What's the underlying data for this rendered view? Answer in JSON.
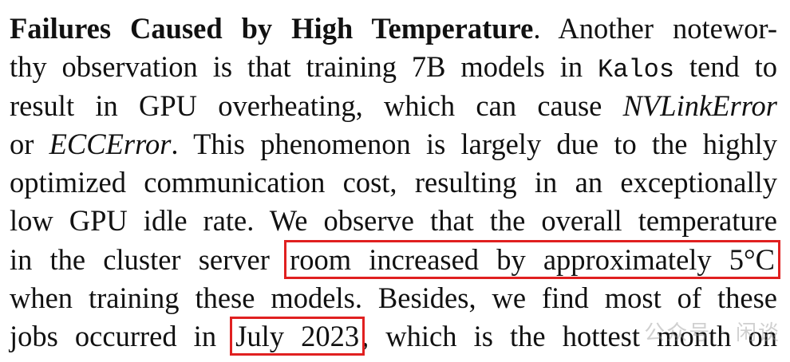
{
  "paragraph": {
    "l1": {
      "heading": "Failures Caused by High Temperature",
      "text": ". Another notewor-"
    },
    "l2": {
      "a": "thy observation is that training 7B models in ",
      "code": "Kalos",
      "b": " tend to"
    },
    "l3": {
      "a": "result in GPU overheating, which can cause ",
      "em": "NVLinkError"
    },
    "l4": {
      "a": "or ",
      "em": "ECCError",
      "b": ". This phenomenon is largely due to the highly"
    },
    "l5": "optimized communication cost, resulting in an exceptionally",
    "l6": "low GPU idle rate. We observe that the overall temperature",
    "l7": {
      "a": "in the cluster server ",
      "highlight": "room increased by approximately 5°C"
    },
    "l8": "when training these models. Besides, we find most of these",
    "l9": {
      "a": "jobs occurred in ",
      "highlight": "July 2023",
      "b": ", which is the hottest month on"
    }
  },
  "watermark": "公众号 · 闲谈",
  "colors": {
    "highlight_box": "#e02020",
    "text": "#111111"
  }
}
